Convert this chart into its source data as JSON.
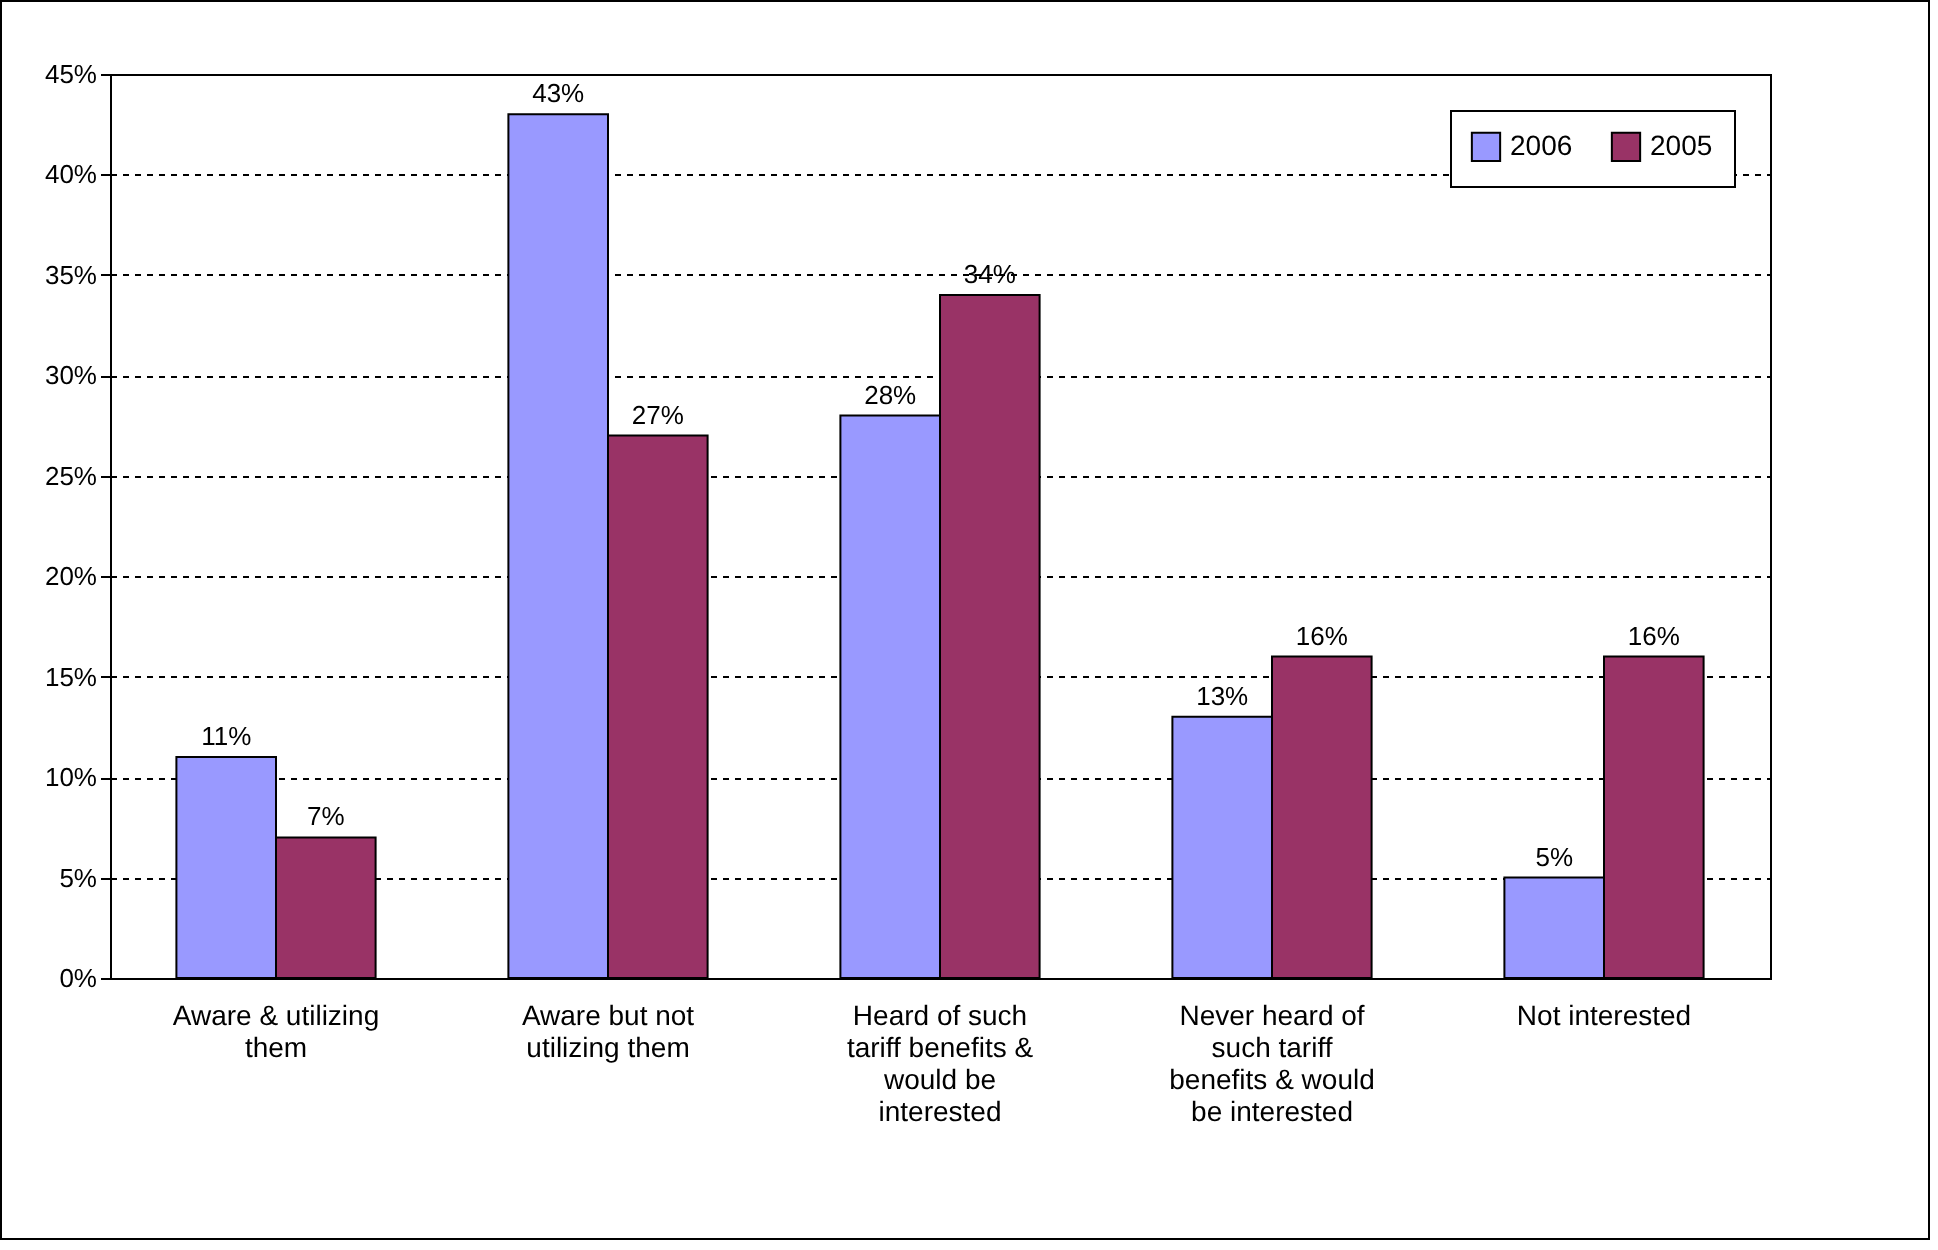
{
  "chart_data": {
    "type": "bar",
    "categories": [
      "Aware & utilizing them",
      "Aware but not utilizing them",
      "Heard of such tariff benefits & would be interested",
      "Never heard of such tariff benefits & would be interested",
      "Not interested"
    ],
    "series": [
      {
        "name": "2006",
        "color": "#9999ff",
        "values": [
          11,
          43,
          28,
          13,
          5
        ],
        "value_labels": [
          "11%",
          "43%",
          "28%",
          "13%",
          "5%"
        ]
      },
      {
        "name": "2005",
        "color": "#993366",
        "values": [
          7,
          27,
          34,
          16,
          16
        ],
        "value_labels": [
          "7%",
          "27%",
          "34%",
          "16%",
          "16%"
        ]
      }
    ],
    "ylim": [
      0,
      45
    ],
    "yticks": [
      {
        "value": 0,
        "label": "0%"
      },
      {
        "value": 5,
        "label": "5%"
      },
      {
        "value": 10,
        "label": "10%"
      },
      {
        "value": 15,
        "label": "15%"
      },
      {
        "value": 20,
        "label": "20%"
      },
      {
        "value": 25,
        "label": "25%"
      },
      {
        "value": 30,
        "label": "30%"
      },
      {
        "value": 35,
        "label": "35%"
      },
      {
        "value": 40,
        "label": "40%"
      },
      {
        "value": 45,
        "label": "45%"
      }
    ],
    "grid": "y",
    "legend": "top right"
  }
}
